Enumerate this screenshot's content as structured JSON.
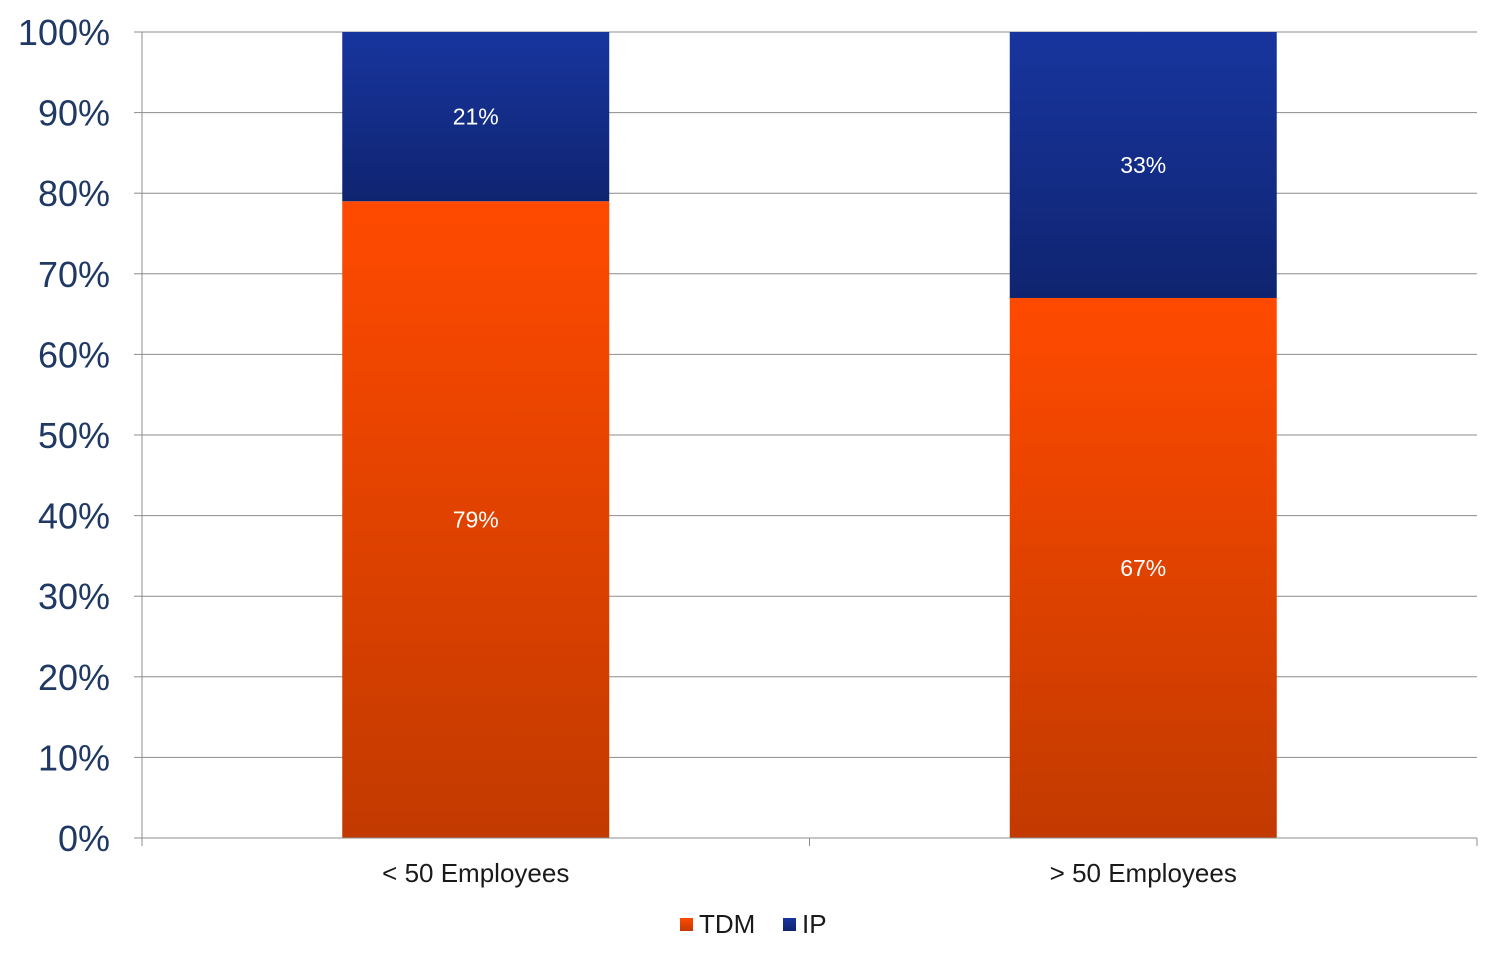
{
  "chart_data": {
    "type": "bar",
    "stacked": true,
    "categories": [
      "< 50 Employees",
      "> 50 Employees"
    ],
    "series": [
      {
        "name": "TDM",
        "values": [
          79,
          67
        ],
        "labels": [
          "79%",
          "67%"
        ],
        "color": "#ff4a00"
      },
      {
        "name": "IP",
        "values": [
          21,
          33
        ],
        "labels": [
          "21%",
          "33%"
        ],
        "color": "#1a3aa0"
      }
    ],
    "ylim": [
      0,
      100
    ],
    "yticks": [
      "0%",
      "10%",
      "20%",
      "30%",
      "40%",
      "50%",
      "60%",
      "70%",
      "80%",
      "90%",
      "100%"
    ],
    "grid": true,
    "legend_position": "bottom"
  }
}
